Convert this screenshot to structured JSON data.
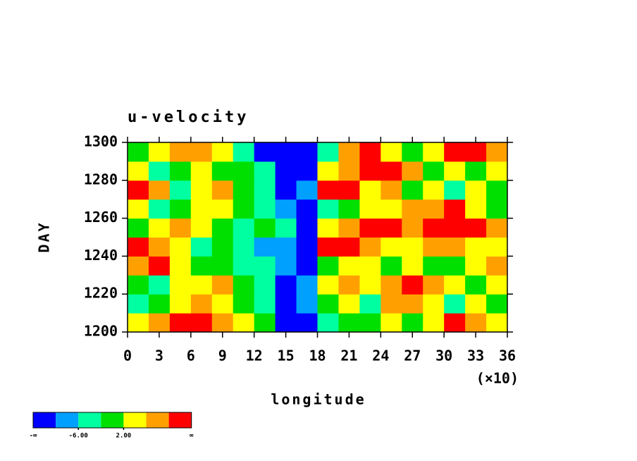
{
  "chart_data": {
    "type": "heatmap",
    "title": "u-velocity",
    "x_label": "longitude",
    "y_label": "DAY",
    "x_multiplier": "(×10)",
    "x": [
      1,
      3,
      5,
      7,
      9,
      11,
      13,
      15,
      17,
      19,
      21,
      23,
      25,
      27,
      29,
      31,
      33,
      35
    ],
    "y": [
      1205,
      1215,
      1225,
      1235,
      1245,
      1255,
      1265,
      1275,
      1285,
      1295
    ],
    "values": [
      [
        3,
        7,
        11,
        10,
        6,
        2,
        -1,
        -11,
        -11,
        -3,
        1,
        -2,
        4,
        0,
        5,
        11,
        8,
        4
      ],
      [
        -3,
        0,
        4,
        7,
        3,
        -2,
        -5,
        -11,
        -9,
        0,
        3,
        -4,
        6,
        8,
        2,
        -3,
        5,
        -1
      ],
      [
        1,
        -4,
        2,
        5,
        8,
        1,
        -3,
        -11,
        -7,
        4,
        7,
        3,
        8,
        11,
        6,
        3,
        0,
        2
      ],
      [
        7,
        11,
        4,
        0,
        -2,
        -5,
        -4,
        -8,
        -11,
        -1,
        2,
        5,
        0,
        3,
        -2,
        1,
        4,
        6
      ],
      [
        11,
        6,
        2,
        -3,
        0,
        -6,
        -7,
        -9,
        -11,
        11,
        11,
        7,
        4,
        3,
        6,
        8,
        5,
        3
      ],
      [
        -2,
        3,
        7,
        4,
        -1,
        -4,
        -2,
        -5,
        -11,
        2,
        7,
        11,
        11,
        9,
        11,
        11,
        11,
        6
      ],
      [
        3,
        -4,
        0,
        5,
        3,
        -1,
        -5,
        -7,
        -11,
        -3,
        1,
        4,
        2,
        6,
        8,
        11,
        3,
        -2
      ],
      [
        11,
        7,
        -3,
        2,
        6,
        1,
        -4,
        -11,
        -9,
        11,
        11,
        4,
        6,
        -1,
        2,
        -3,
        5,
        1
      ],
      [
        2,
        -5,
        1,
        4,
        -2,
        0,
        -6,
        -11,
        -11,
        3,
        8,
        11,
        11,
        7,
        1,
        4,
        -1,
        3
      ],
      [
        -1,
        5,
        9,
        7,
        3,
        -3,
        -11,
        -11,
        -11,
        -4,
        8,
        11,
        3,
        -2,
        5,
        11,
        11,
        6
      ]
    ],
    "xlim": [
      0,
      36
    ],
    "ylim": [
      1200,
      1300
    ],
    "xticks": [
      0,
      3,
      6,
      9,
      12,
      15,
      18,
      21,
      24,
      27,
      30,
      33,
      36
    ],
    "yticks": [
      1200,
      1220,
      1240,
      1260,
      1280,
      1300
    ],
    "colorbar": {
      "colors": [
        "#0000ff",
        "#00a0ff",
        "#00ffa0",
        "#00e000",
        "#ffff00",
        "#ffa000",
        "#ff0000"
      ],
      "levels": [
        -10,
        -6,
        -2,
        2,
        6,
        10
      ],
      "ticks": [
        {
          "value": -6,
          "label": "-6.00"
        },
        {
          "value": 2,
          "label": "2.00"
        }
      ],
      "min_label": "-∞",
      "max_label": "∞"
    }
  }
}
